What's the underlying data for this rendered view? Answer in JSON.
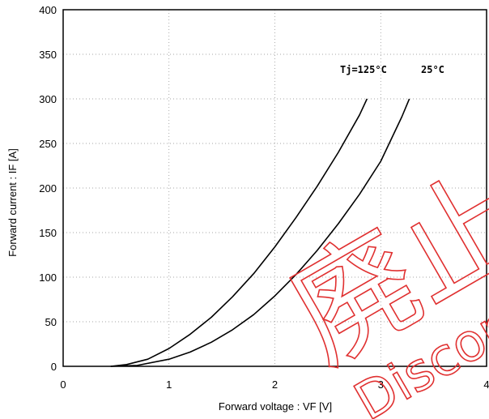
{
  "chart_data": {
    "type": "line",
    "title": "",
    "xlabel": "Forward voltage  :  VF [V]",
    "ylabel": "Forward current  :  IF [A]",
    "xlim": [
      0,
      4
    ],
    "ylim": [
      0,
      400
    ],
    "x_ticks": [
      "0",
      "1",
      "2",
      "3",
      "4"
    ],
    "y_ticks": [
      "0",
      "50",
      "100",
      "150",
      "200",
      "250",
      "300",
      "350",
      "400"
    ],
    "grid": true,
    "series": [
      {
        "name": "Tj=125°C",
        "x": [
          0.45,
          0.6,
          0.8,
          1.0,
          1.2,
          1.4,
          1.6,
          1.8,
          2.0,
          2.2,
          2.4,
          2.6,
          2.8,
          2.87
        ],
        "y": [
          0,
          2,
          8,
          20,
          36,
          55,
          78,
          104,
          134,
          167,
          202,
          240,
          282,
          300
        ]
      },
      {
        "name": "25°C",
        "x": [
          0.45,
          0.7,
          1.0,
          1.2,
          1.4,
          1.6,
          1.8,
          2.0,
          2.2,
          2.4,
          2.6,
          2.8,
          3.0,
          3.2,
          3.27
        ],
        "y": [
          0,
          1,
          8,
          16,
          27,
          41,
          58,
          79,
          103,
          130,
          160,
          193,
          230,
          280,
          300
        ]
      }
    ]
  },
  "watermark": {
    "kanji": "廃止",
    "text": "Discontinued",
    "color": "#e03030"
  }
}
